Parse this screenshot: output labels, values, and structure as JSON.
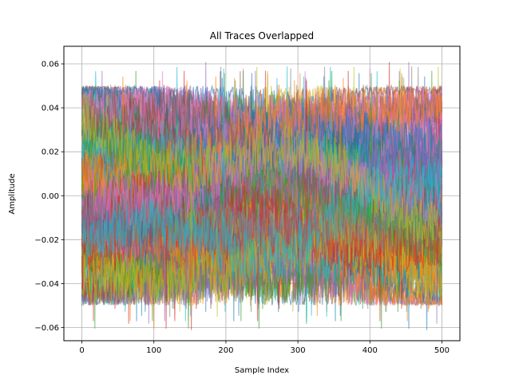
{
  "chart_data": {
    "type": "line",
    "title": "All Traces Overlapped",
    "xlabel": "Sample Index",
    "ylabel": "Amplitude",
    "xlim": [
      -25,
      525
    ],
    "ylim": [
      -0.066,
      0.068
    ],
    "x_ticks": [
      0,
      100,
      200,
      300,
      400,
      500
    ],
    "x_tick_labels": [
      "0",
      "100",
      "200",
      "300",
      "400",
      "500"
    ],
    "y_ticks": [
      -0.06,
      -0.04,
      -0.02,
      0.0,
      0.02,
      0.04,
      0.06
    ],
    "y_tick_labels": [
      "−0.06",
      "−0.04",
      "−0.02",
      "0.00",
      "0.02",
      "0.04",
      "0.06"
    ],
    "grid": true,
    "legend": "none",
    "samples_per_trace": 501,
    "x_range": [
      0,
      500
    ],
    "trace_count": 120,
    "trace_alpha": 0.55,
    "noise_amplitude_max": 0.05,
    "observed_y_extent": [
      -0.061,
      0.063
    ],
    "color_cycle": [
      "#1f77b4",
      "#ff7f0e",
      "#2ca02c",
      "#d62728",
      "#9467bd",
      "#8c564b",
      "#e377c2",
      "#7f7f7f",
      "#bcbd22",
      "#17becf"
    ]
  }
}
